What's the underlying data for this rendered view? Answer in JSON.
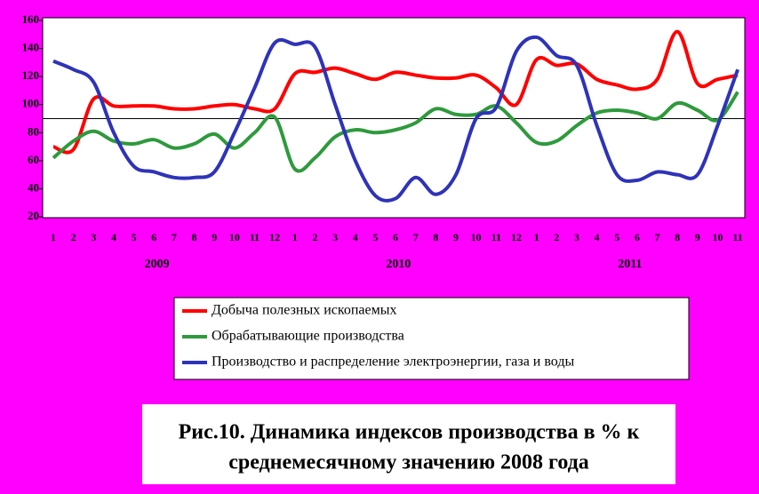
{
  "chart_data": {
    "type": "line",
    "title_lines": [
      "Рис.10. Динамика индексов производства в % к",
      "среднемесячному значению 2008 года"
    ],
    "categories": [
      "1",
      "2",
      "3",
      "4",
      "5",
      "6",
      "7",
      "8",
      "9",
      "10",
      "11",
      "12",
      "1",
      "2",
      "3",
      "4",
      "5",
      "6",
      "7",
      "8",
      "9",
      "10",
      "11",
      "12",
      "1",
      "2",
      "3",
      "4",
      "5",
      "6",
      "7",
      "8",
      "9",
      "10",
      "11"
    ],
    "years": [
      "2009",
      "2010",
      "2011"
    ],
    "ylim": [
      20,
      160
    ],
    "yticks": [
      20,
      40,
      60,
      80,
      100,
      120,
      140,
      160
    ],
    "reference_line": 90,
    "series": [
      {
        "name": "Добыча полезных ископаемых",
        "color": "#ff0000",
        "values": [
          70,
          68,
          104,
          99,
          99,
          99,
          97,
          97,
          99,
          100,
          97,
          97,
          122,
          123,
          126,
          122,
          118,
          123,
          121,
          119,
          119,
          121,
          112,
          100,
          132,
          128,
          129,
          118,
          114,
          111,
          118,
          152,
          115,
          118,
          121
        ]
      },
      {
        "name": "Обрабатывающие производства",
        "color": "#2e9a3c",
        "values": [
          62,
          74,
          81,
          74,
          72,
          75,
          69,
          72,
          79,
          69,
          80,
          91,
          54,
          62,
          77,
          82,
          80,
          82,
          87,
          97,
          93,
          93,
          99,
          87,
          73,
          74,
          85,
          94,
          96,
          94,
          90,
          101,
          96,
          89,
          109
        ]
      },
      {
        "name": "Производство и распределение электроэнергии, газа и воды",
        "color": "#2e33b8",
        "values": [
          131,
          125,
          116,
          80,
          56,
          52,
          48,
          48,
          52,
          80,
          112,
          144,
          143,
          141,
          100,
          60,
          35,
          33,
          48,
          36,
          50,
          90,
          98,
          138,
          148,
          135,
          128,
          85,
          50,
          46,
          52,
          50,
          50,
          85,
          125
        ]
      }
    ]
  }
}
